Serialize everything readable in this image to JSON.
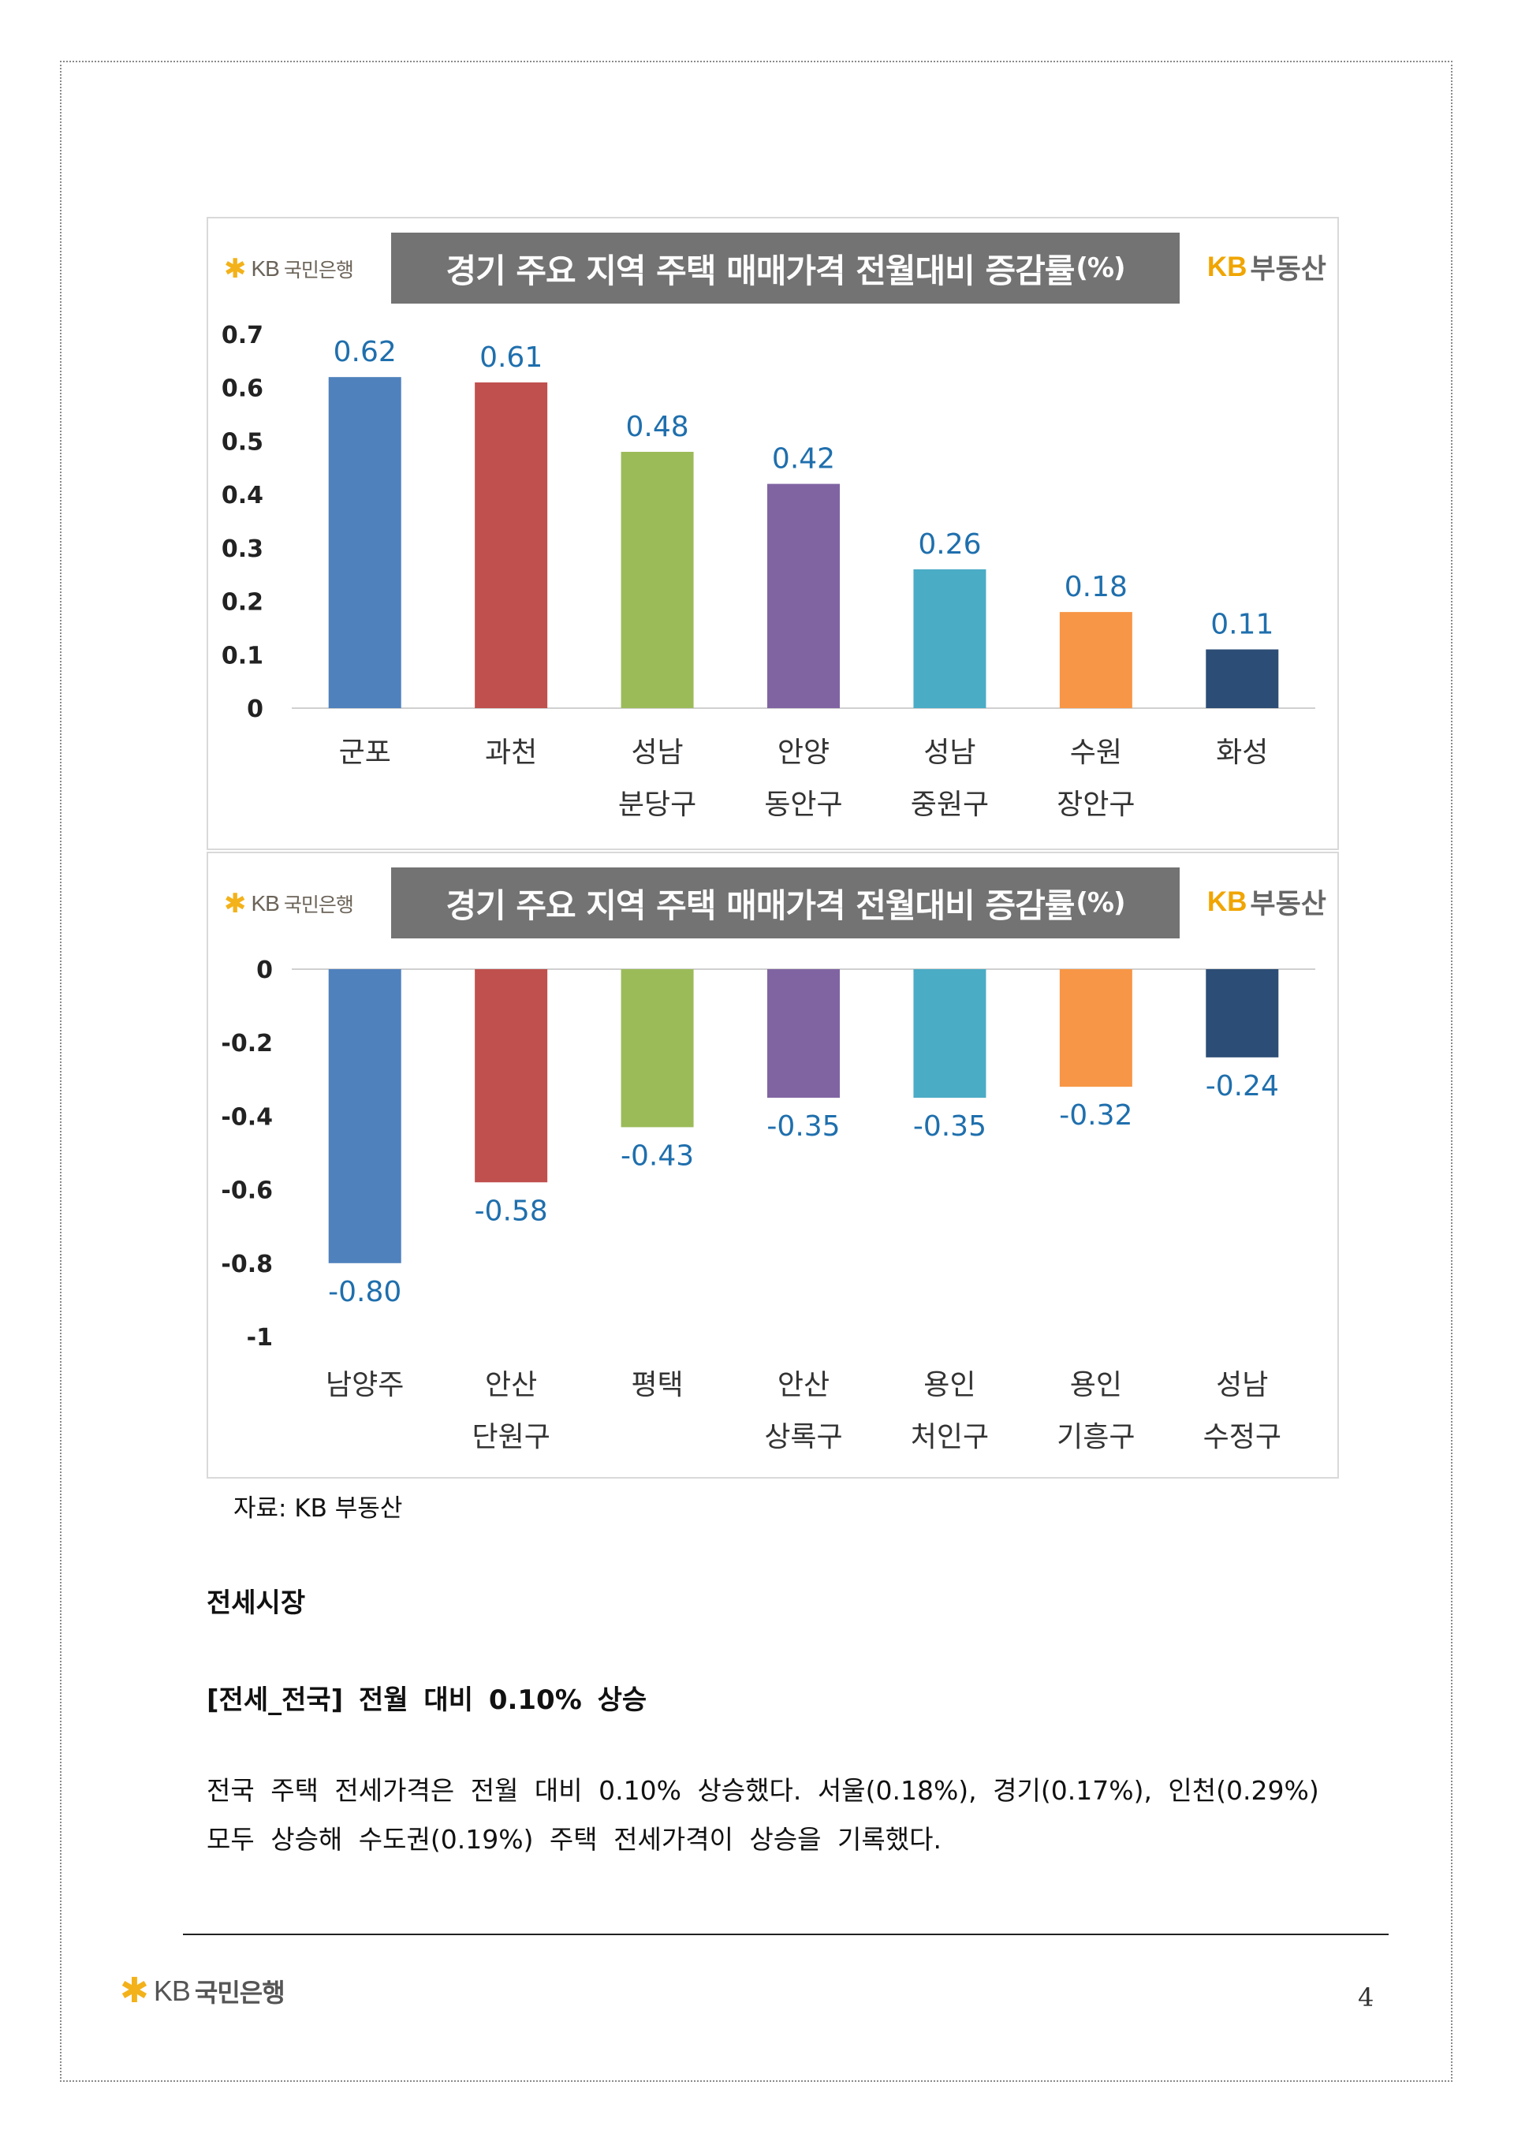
{
  "logo": {
    "star": "✱",
    "letters": "KB",
    "bank": "국민은행"
  },
  "realty": {
    "kb": "KB",
    "name": "부동산"
  },
  "colors": [
    "#4f81bd",
    "#c0504d",
    "#9bbb59",
    "#8064a2",
    "#4bacc6",
    "#f79646",
    "#2c4d75"
  ],
  "chart_data": [
    {
      "type": "bar",
      "title": "경기 주요 지역 주택 매매가격 전월대비 증감률",
      "title_suffix": "(%)",
      "categories": [
        [
          "군포"
        ],
        [
          "과천"
        ],
        [
          "성남",
          "분당구"
        ],
        [
          "안양",
          "동안구"
        ],
        [
          "성남",
          "중원구"
        ],
        [
          "수원",
          "장안구"
        ],
        [
          "화성"
        ]
      ],
      "values": [
        0.62,
        0.61,
        0.48,
        0.42,
        0.26,
        0.18,
        0.11
      ],
      "data_labels": [
        "0.62",
        "0.61",
        "0.48",
        "0.42",
        "0.26",
        "0.18",
        "0.11"
      ],
      "yticks": [
        "0",
        "0.1",
        "0.2",
        "0.3",
        "0.4",
        "0.5",
        "0.6",
        "0.7"
      ],
      "ylim": [
        0,
        0.7
      ],
      "grid": false,
      "legend": "none"
    },
    {
      "type": "bar",
      "title": "경기 주요 지역 주택 매매가격 전월대비 증감률",
      "title_suffix": "(%)",
      "categories": [
        [
          "남양주"
        ],
        [
          "안산",
          "단원구"
        ],
        [
          "평택"
        ],
        [
          "안산",
          "상록구"
        ],
        [
          "용인",
          "처인구"
        ],
        [
          "용인",
          "기흥구"
        ],
        [
          "성남",
          "수정구"
        ]
      ],
      "values": [
        -0.8,
        -0.58,
        -0.43,
        -0.35,
        -0.35,
        -0.32,
        -0.24
      ],
      "data_labels": [
        "-0.80",
        "-0.58",
        "-0.43",
        "-0.35",
        "-0.35",
        "-0.32",
        "-0.24"
      ],
      "yticks": [
        "0",
        "-0.2",
        "-0.4",
        "-0.6",
        "-0.8",
        "-1"
      ],
      "ylim": [
        -1,
        0
      ],
      "grid": false,
      "legend": "none"
    }
  ],
  "source": "자료: KB 부동산",
  "section_title": "전세시장",
  "sub_title": "[전세_전국] 전월 대비 0.10% 상승",
  "body_lines": [
    "전국 주택 전세가격은 전월 대비 0.10% 상승했다. 서울(0.18%), 경기(0.17%), 인천(0.29%)",
    "모두 상승해 수도권(0.19%) 주택 전세가격이 상승을 기록했다."
  ],
  "page_number": "4"
}
